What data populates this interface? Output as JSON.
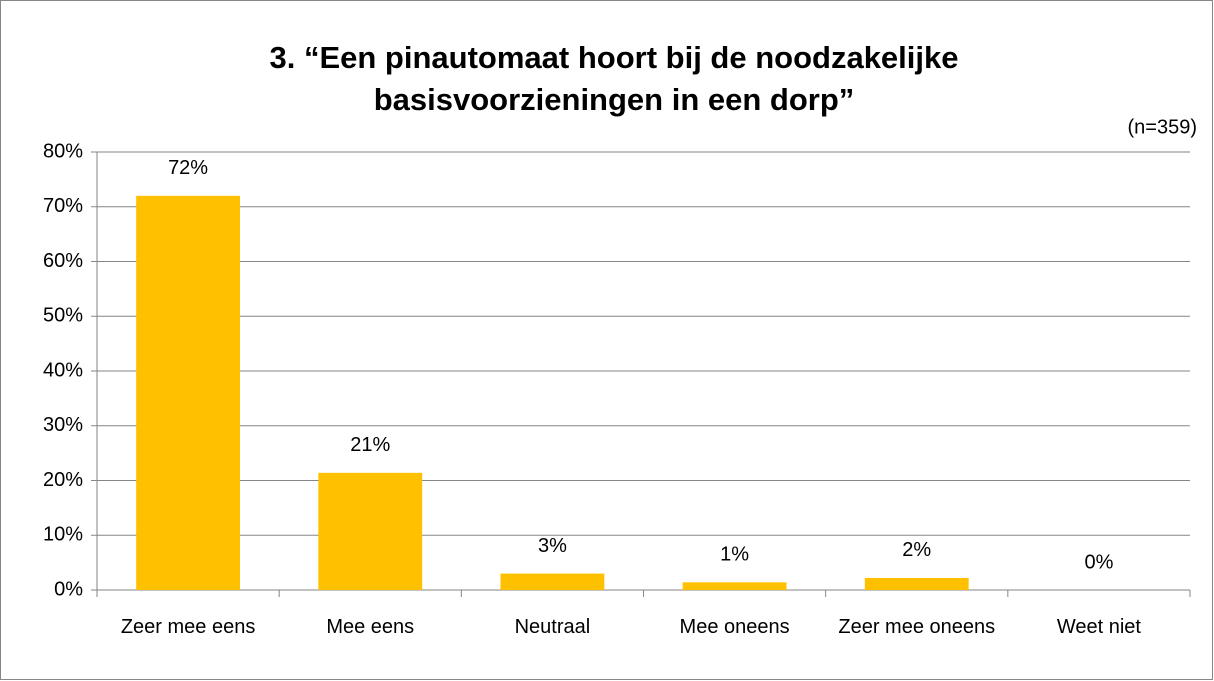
{
  "chart_data": {
    "type": "bar",
    "title": [
      "3. “Een pinautomaat hoort bij de noodzakelijke",
      "basisvoorzieningen in een dorp”"
    ],
    "annotation": "(n=359)",
    "categories": [
      "Zeer mee eens",
      "Mee eens",
      "Neutraal",
      "Mee oneens",
      "Zeer mee oneens",
      "Weet niet"
    ],
    "values": [
      72,
      21.4,
      3,
      1.4,
      2.2,
      0
    ],
    "value_labels": [
      "72%",
      "21%",
      "3%",
      "1%",
      "2%",
      "0%"
    ],
    "color": "#ffc000",
    "ylim": [
      0,
      80
    ],
    "yticks": [
      {
        "value": 0,
        "label": "0%"
      },
      {
        "value": 10,
        "label": "10%"
      },
      {
        "value": 20,
        "label": "20%"
      },
      {
        "value": 30,
        "label": "30%"
      },
      {
        "value": 40,
        "label": "40%"
      },
      {
        "value": 50,
        "label": "50%"
      },
      {
        "value": 60,
        "label": "60%"
      },
      {
        "value": 70,
        "label": "70%"
      },
      {
        "value": 80,
        "label": "80%"
      }
    ],
    "grid": true
  }
}
